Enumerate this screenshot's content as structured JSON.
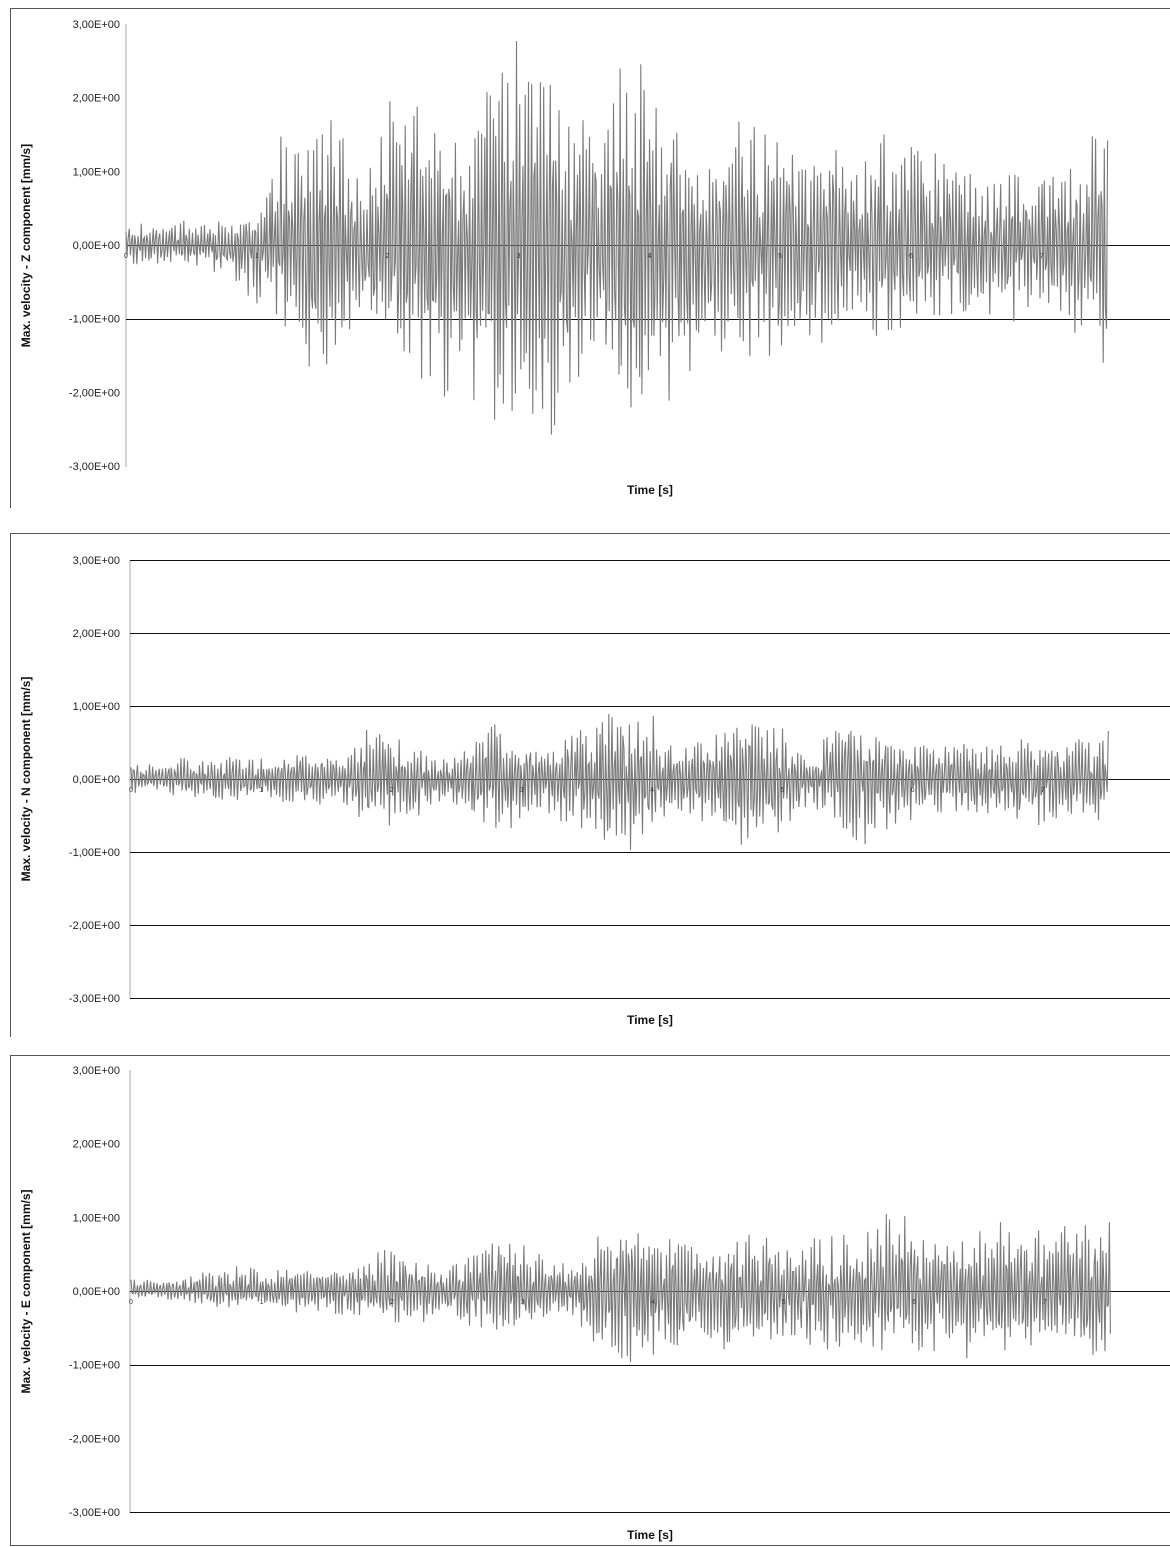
{
  "chart_data": [
    {
      "type": "line",
      "xlabel": "Time [s]",
      "ylabel": "Max. velocity - Z component [mm/s]",
      "ylim": [
        -3,
        3
      ],
      "xlim": [
        0,
        7.6
      ],
      "y_ticks": [
        "3,00E+00",
        "2,00E+00",
        "1,00E+00",
        "0,00E+00",
        "-1,00E+00",
        "-2,00E+00",
        "-3,00E+00"
      ],
      "x_ticks": [
        "0",
        "1",
        "2",
        "3",
        "4",
        "5",
        "6",
        "7"
      ],
      "grid": "horizontal lines at -1, 0 (axis)",
      "series": [
        {
          "color": "#7a7a7a",
          "x": [
            0,
            0.2,
            0.4,
            0.6,
            0.8,
            1.0,
            1.2,
            1.4,
            1.6,
            1.8,
            2.0,
            2.2,
            2.4,
            2.6,
            2.8,
            3.0,
            3.2,
            3.4,
            3.6,
            3.8,
            4.0,
            4.2,
            4.4,
            4.6,
            4.8,
            5.0,
            5.2,
            5.4,
            5.6,
            5.8,
            6.0,
            6.2,
            6.4,
            6.6,
            6.8,
            7.0,
            7.2,
            7.4,
            7.6
          ],
          "upper": [
            0.3,
            0.3,
            0.4,
            0.35,
            0.3,
            0.5,
            1.7,
            2.0,
            1.9,
            0.8,
            2.0,
            2.15,
            1.9,
            1.2,
            2.6,
            3.0,
            2.8,
            1.6,
            2.1,
            2.55,
            2.5,
            2.0,
            0.8,
            1.8,
            1.7,
            1.6,
            1.2,
            1.5,
            1.1,
            1.7,
            1.5,
            1.3,
            1.1,
            1.0,
            1.2,
            1.1,
            1.0,
            1.6,
            2.1
          ],
          "lower": [
            -0.3,
            -0.3,
            -0.35,
            -0.3,
            -0.5,
            -0.9,
            -1.1,
            -1.9,
            -2.0,
            -1.4,
            -1.2,
            -2.1,
            -2.2,
            -2.0,
            -2.6,
            -2.9,
            -3.0,
            -2.3,
            -1.6,
            -2.4,
            -2.5,
            -2.4,
            -1.3,
            -1.7,
            -1.7,
            -1.9,
            -1.5,
            -1.3,
            -1.0,
            -1.4,
            -1.3,
            -1.2,
            -1.1,
            -1.0,
            -1.1,
            -1.0,
            -1.1,
            -1.6,
            -2.4
          ]
        }
      ]
    },
    {
      "type": "line",
      "xlabel": "Time [s]",
      "ylabel": "Max. velocity - N component [mm/s]",
      "ylim": [
        -3,
        3
      ],
      "xlim": [
        0,
        7.6
      ],
      "y_ticks": [
        "3,00E+00",
        "2,00E+00",
        "1,00E+00",
        "0,00E+00",
        "-1,00E+00",
        "-2,00E+00",
        "-3,00E+00"
      ],
      "x_ticks": [
        "0",
        "1",
        "2",
        "3",
        "4",
        "5",
        "6",
        "7"
      ],
      "grid": "horizontal lines at every major tick",
      "series": [
        {
          "color": "#7a7a7a",
          "x": [
            0,
            0.2,
            0.4,
            0.6,
            0.8,
            1.0,
            1.2,
            1.4,
            1.6,
            1.8,
            2.0,
            2.2,
            2.4,
            2.6,
            2.8,
            3.0,
            3.2,
            3.4,
            3.6,
            3.8,
            4.0,
            4.2,
            4.4,
            4.6,
            4.8,
            5.0,
            5.2,
            5.4,
            5.6,
            5.8,
            6.0,
            6.2,
            6.4,
            6.6,
            6.8,
            7.0,
            7.2,
            7.4,
            7.6
          ],
          "upper": [
            0.25,
            0.2,
            0.3,
            0.3,
            0.35,
            0.3,
            0.35,
            0.4,
            0.35,
            0.75,
            0.7,
            0.45,
            0.3,
            0.6,
            0.8,
            0.6,
            0.5,
            0.75,
            0.9,
            1.05,
            0.9,
            0.4,
            0.6,
            0.85,
            0.9,
            0.7,
            0.3,
            0.85,
            0.8,
            0.7,
            0.5,
            0.5,
            0.55,
            0.5,
            0.55,
            0.6,
            0.65,
            0.7,
            0.75
          ],
          "lower": [
            -0.2,
            -0.2,
            -0.25,
            -0.3,
            -0.35,
            -0.3,
            -0.35,
            -0.4,
            -0.35,
            -0.65,
            -0.7,
            -0.55,
            -0.3,
            -0.5,
            -0.75,
            -0.7,
            -0.55,
            -0.7,
            -1.05,
            -1.05,
            -0.85,
            -0.6,
            -0.6,
            -0.95,
            -1.0,
            -0.75,
            -0.4,
            -0.7,
            -1.05,
            -0.75,
            -0.55,
            -0.6,
            -0.55,
            -0.55,
            -0.6,
            -0.65,
            -0.6,
            -0.6,
            -0.65
          ]
        }
      ]
    },
    {
      "type": "line",
      "xlabel": "Time [s]",
      "ylabel": "Max. velocity - E component [mm/s]",
      "ylim": [
        -3,
        3
      ],
      "xlim": [
        0,
        7.6
      ],
      "y_ticks": [
        "3,00E+00",
        "2,00E+00",
        "1,00E+00",
        "0,00E+00",
        "-1,00E+00",
        "-2,00E+00",
        "-3,00E+00"
      ],
      "x_ticks": [
        "0",
        "1",
        "2",
        "3",
        "4",
        "5",
        "6",
        "7"
      ],
      "grid": "horizontal lines at -3, -1, 0 (axis)",
      "series": [
        {
          "color": "#7a7a7a",
          "x": [
            0,
            0.2,
            0.4,
            0.6,
            0.8,
            1.0,
            1.2,
            1.4,
            1.6,
            1.8,
            2.0,
            2.2,
            2.4,
            2.6,
            2.8,
            3.0,
            3.2,
            3.4,
            3.6,
            3.8,
            4.0,
            4.2,
            4.4,
            4.6,
            4.8,
            5.0,
            5.2,
            5.4,
            5.6,
            5.8,
            6.0,
            6.2,
            6.4,
            6.6,
            6.8,
            7.0,
            7.2,
            7.4,
            7.6
          ],
          "upper": [
            0.2,
            0.15,
            0.2,
            0.3,
            0.4,
            0.3,
            0.35,
            0.3,
            0.3,
            0.45,
            0.7,
            0.5,
            0.3,
            0.5,
            0.85,
            0.75,
            0.45,
            0.35,
            0.85,
            0.8,
            0.8,
            0.85,
            0.75,
            0.8,
            0.8,
            0.85,
            0.7,
            0.85,
            0.75,
            1.25,
            0.95,
            0.85,
            0.9,
            1.05,
            0.8,
            0.9,
            0.95,
            1.0,
            1.05
          ],
          "lower": [
            -0.1,
            -0.1,
            -0.15,
            -0.2,
            -0.25,
            -0.2,
            -0.3,
            -0.3,
            -0.35,
            -0.4,
            -0.45,
            -0.5,
            -0.4,
            -0.5,
            -0.55,
            -0.55,
            -0.4,
            -0.4,
            -0.85,
            -1.05,
            -0.9,
            -0.85,
            -0.8,
            -0.85,
            -0.95,
            -0.85,
            -0.8,
            -0.85,
            -0.9,
            -1.0,
            -0.95,
            -0.85,
            -0.95,
            -0.9,
            -0.85,
            -0.9,
            -0.95,
            -1.0,
            -1.05
          ]
        }
      ]
    }
  ]
}
